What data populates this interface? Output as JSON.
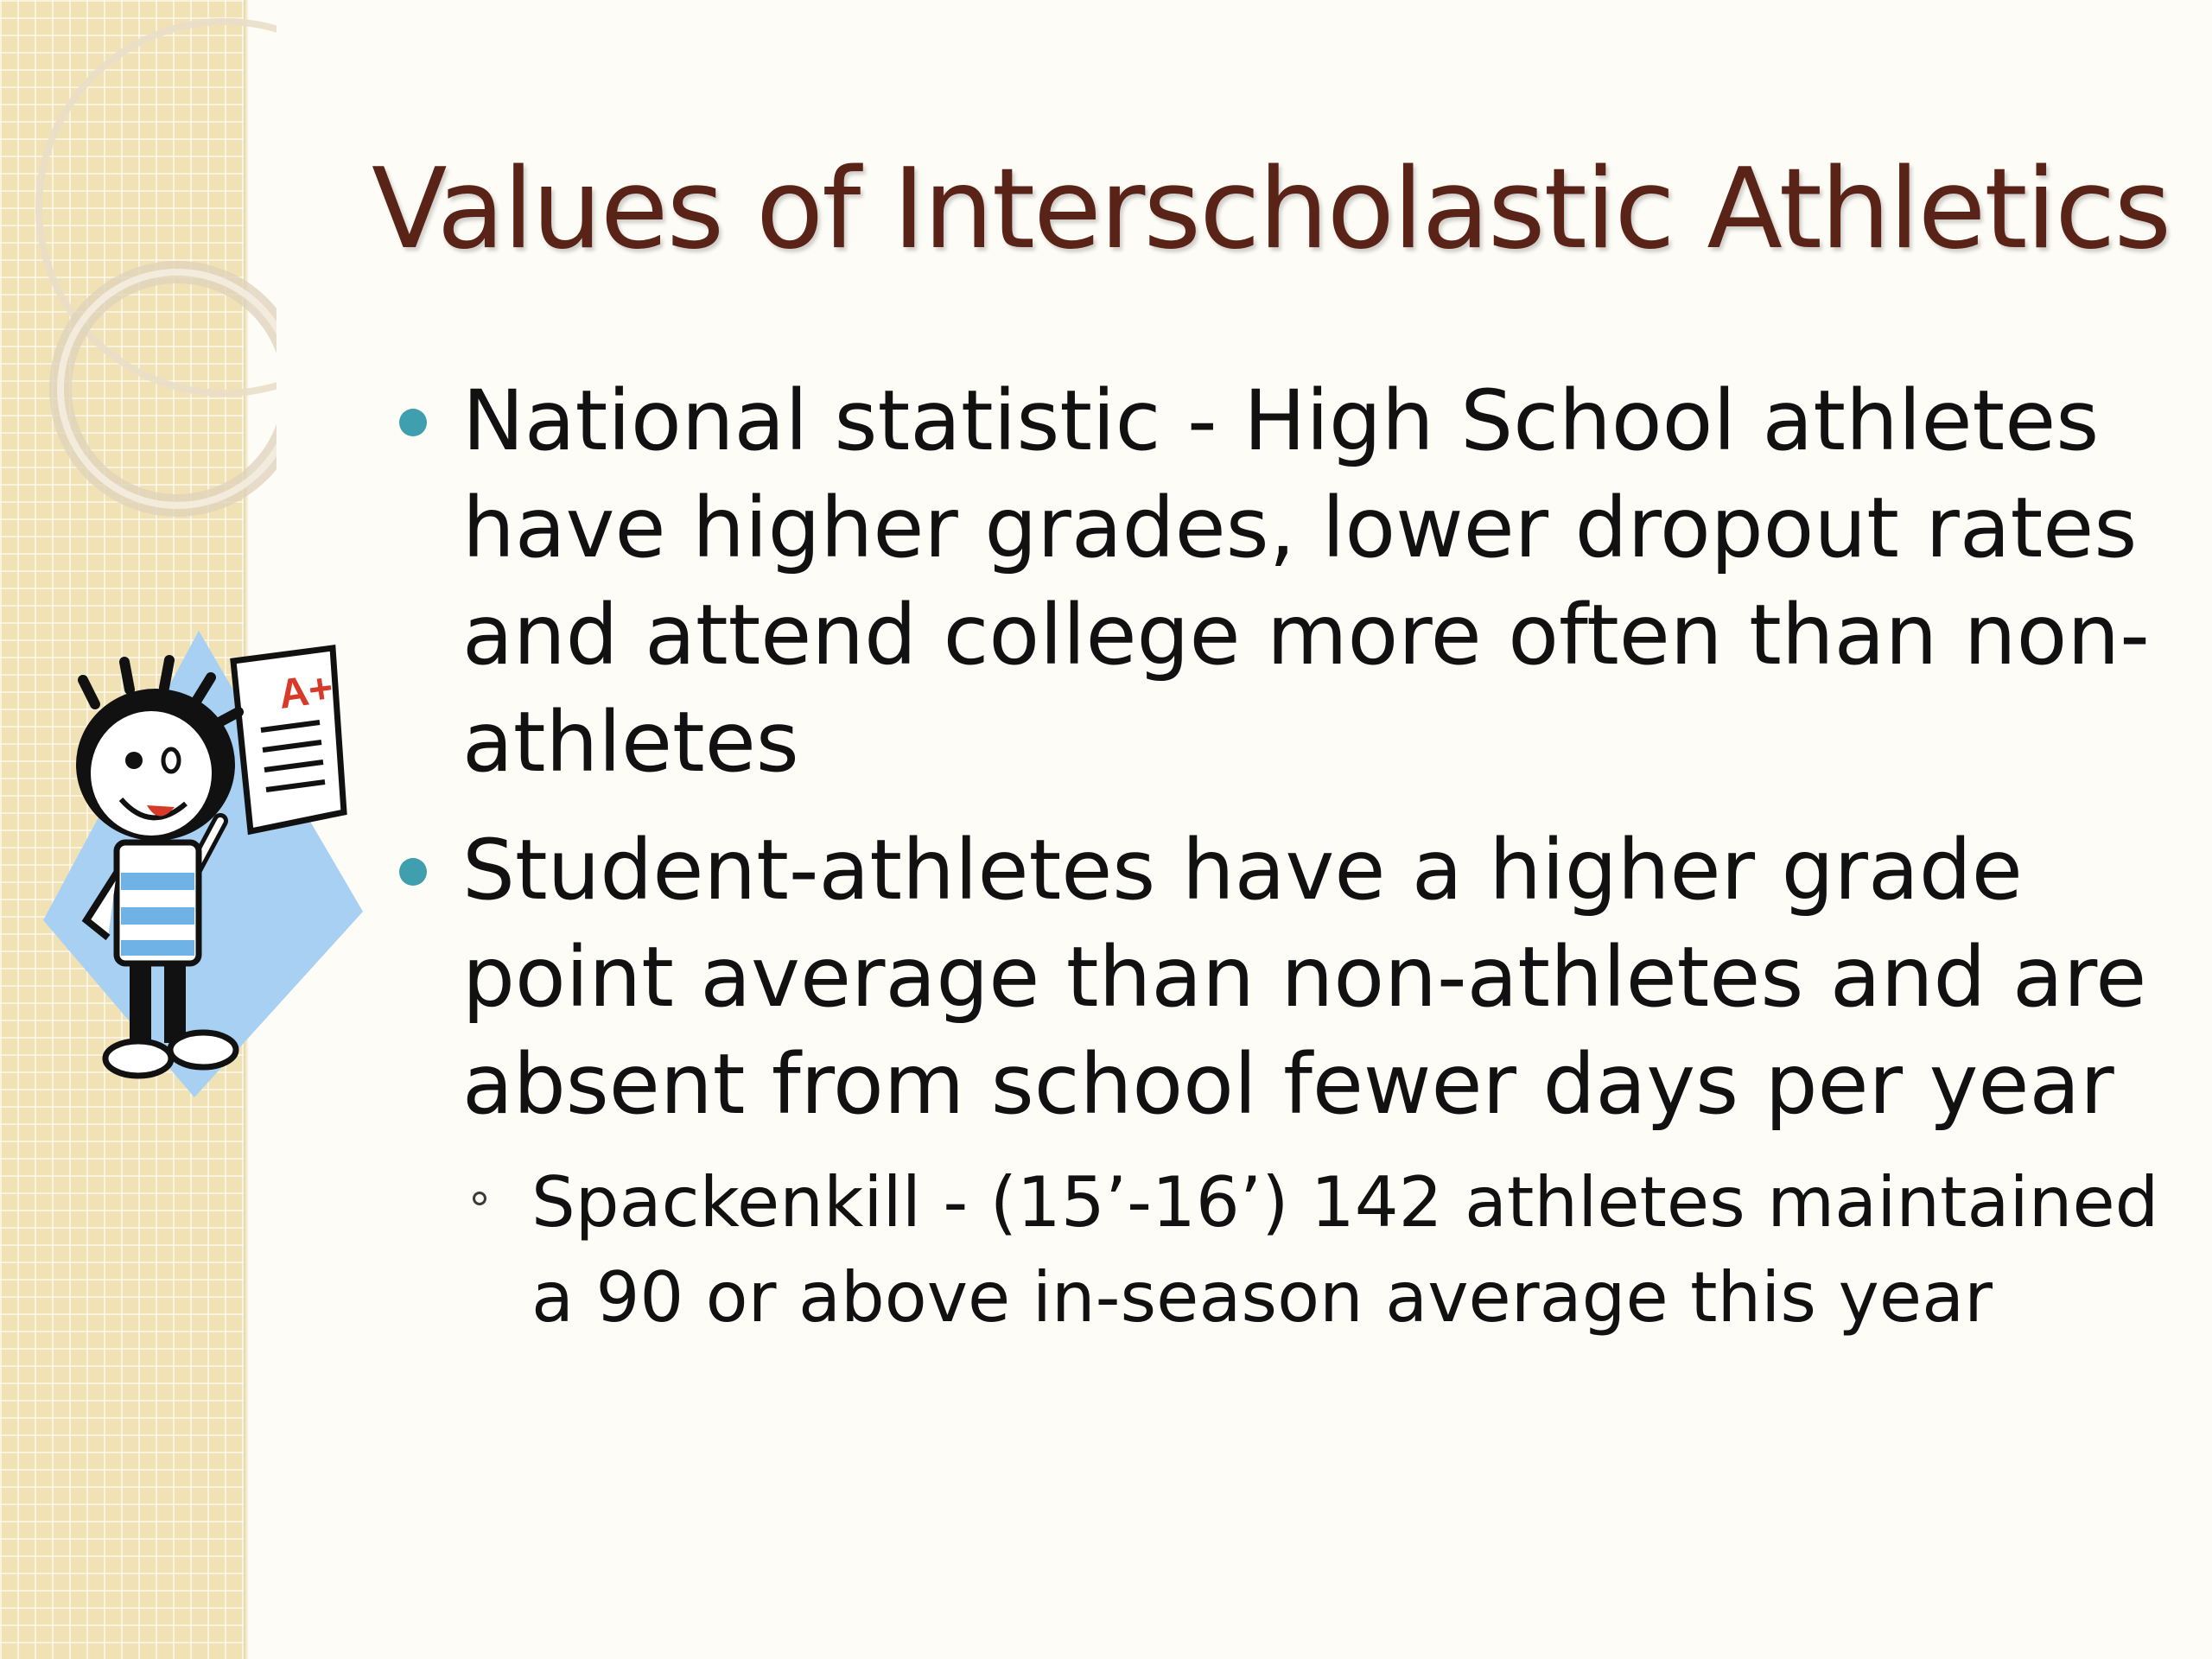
{
  "slide": {
    "title": "Values of Interscholastic Athletics",
    "bullets": [
      {
        "text": "National statistic - High School athletes have higher grades, lower dropout rates and attend college more often than non-athletes"
      },
      {
        "text": "Student-athletes have a higher grade point average than non-athletes and are absent from school fewer days per year",
        "sub_bullets": [
          {
            "text": "Spackenkill - (15’-16’) 142 athletes maintained a 90 or above in-season average this year"
          }
        ]
      }
    ],
    "clipart": {
      "icon": "student-holding-a-plus-paper-icon",
      "paper_grade": "A+"
    }
  },
  "colors": {
    "title": "#5a2318",
    "bullet": "#3f9fae",
    "side_panel": "#f1e2b6",
    "background": "#fdfcf7",
    "clipart_diamond": "#a8d0f2"
  }
}
